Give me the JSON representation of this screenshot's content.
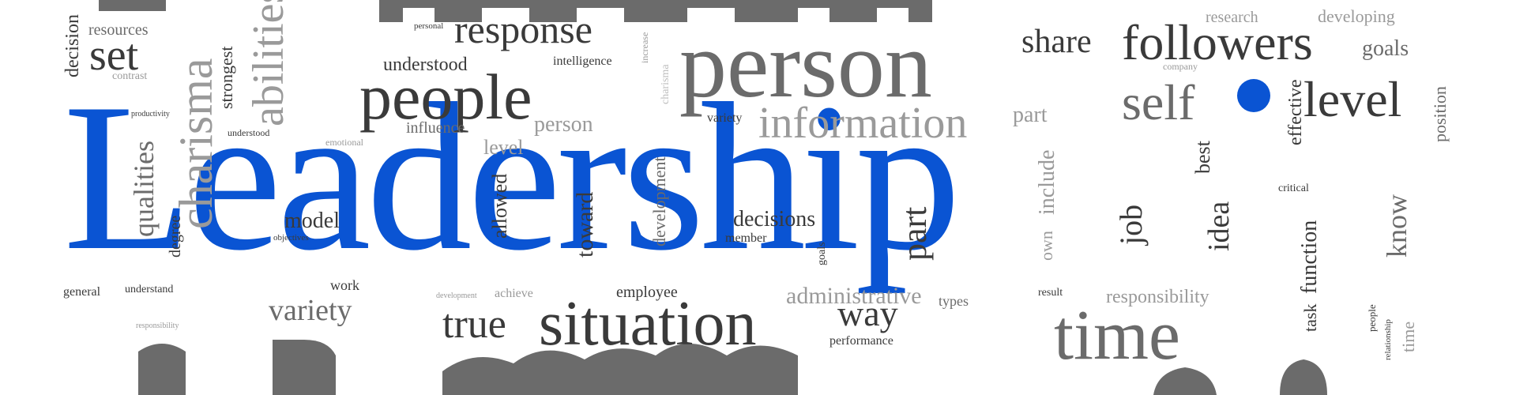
{
  "image": {
    "background_color": "#ffffff",
    "words": {
      "main": "Leadership",
      "people": "people",
      "person_big": "person",
      "followers": "followers",
      "response": "response",
      "share": "share",
      "self": "self",
      "level": "level",
      "information": "information",
      "situation": "situation",
      "time": "time",
      "true": "true",
      "variety": "variety",
      "way": "way",
      "set": "set",
      "decisions": "decisions",
      "model": "model",
      "administrative": "administrative",
      "responsibility": "responsibility",
      "understood": "understood",
      "intelligence": "intelligence",
      "influence": "influence",
      "person_small": "person",
      "part_small": "part",
      "research": "research",
      "developing": "developing",
      "goals": "goals",
      "personal": "personal",
      "resources": "resources",
      "contrast": "contrast",
      "productivity": "productivity",
      "emotional": "emotional",
      "understood_small": "understood",
      "company": "company",
      "variety_small": "variety",
      "critical": "critical",
      "employee": "employee",
      "achieve": "achieve",
      "development_small": "development",
      "work": "work",
      "general": "general",
      "understand": "understand",
      "responsibility_small": "responsibility",
      "member": "member",
      "objectives": "objectives",
      "types": "types",
      "result": "result",
      "performance": "performance",
      "level_small": "level",
      "charisma": "charisma",
      "qualities": "qualities",
      "abilities": "abilities",
      "strongest": "strongest",
      "decision": "decision",
      "toward": "toward",
      "allowed": "allowed",
      "development": "development",
      "part": "part",
      "include": "include",
      "own": "own",
      "job": "job",
      "idea": "idea",
      "best": "best",
      "function": "function",
      "know": "know",
      "effective": "effective",
      "position": "position",
      "task": "task",
      "people_small": "people",
      "relationship": "relationship",
      "time_small": "time",
      "degree": "degree",
      "goals_small": "goals",
      "charisma_small": "charisma",
      "increase": "increase"
    }
  }
}
